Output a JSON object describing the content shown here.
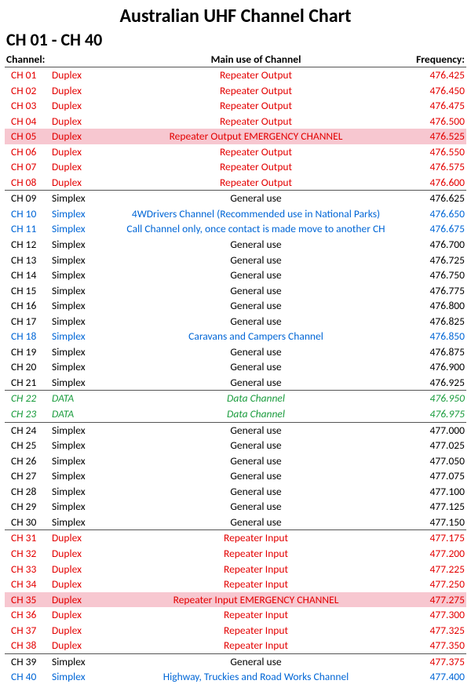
{
  "title": "Australian UHF Channel Chart",
  "subtitle": "CH 01 - CH 40",
  "headers": {
    "channel": "Channel:",
    "use": "Main use of Channel",
    "freq": "Frequency:"
  },
  "colors": {
    "red": "#e30000",
    "black": "#000000",
    "blue": "#0066d6",
    "green": "#1a9c3d",
    "highlight": "#f7c7d0"
  },
  "rows": [
    {
      "ch": "CH 01",
      "mode": "Duplex",
      "use": "Repeater Output",
      "freq": "476.425",
      "cls": "c-red"
    },
    {
      "ch": "CH 02",
      "mode": "Duplex",
      "use": "Repeater Output",
      "freq": "476.450",
      "cls": "c-red"
    },
    {
      "ch": "CH 03",
      "mode": "Duplex",
      "use": "Repeater Output",
      "freq": "476.475",
      "cls": "c-red"
    },
    {
      "ch": "CH 04",
      "mode": "Duplex",
      "use": "Repeater Output",
      "freq": "476.500",
      "cls": "c-red"
    },
    {
      "ch": "CH 05",
      "mode": "Duplex",
      "use": "Repeater Output    EMERGENCY CHANNEL",
      "freq": "476.525",
      "cls": "c-red",
      "hl": true
    },
    {
      "ch": "CH 06",
      "mode": "Duplex",
      "use": "Repeater Output",
      "freq": "476.550",
      "cls": "c-red"
    },
    {
      "ch": "CH 07",
      "mode": "Duplex",
      "use": "Repeater Output",
      "freq": "476.575",
      "cls": "c-red"
    },
    {
      "ch": "CH 08",
      "mode": "Duplex",
      "use": "Repeater Output",
      "freq": "476.600",
      "cls": "c-red"
    },
    {
      "ch": "CH 09",
      "mode": "Simplex",
      "use": "General use",
      "freq": "476.625",
      "cls": "c-black",
      "sep": true
    },
    {
      "ch": "CH 10",
      "mode": "Simplex",
      "use": "4WDrivers Channel (Recommended use in National Parks)",
      "freq": "476.650",
      "cls": "c-blue"
    },
    {
      "ch": "CH 11",
      "mode": "Simplex",
      "use": "Call Channel only, once contact is made move to another CH",
      "freq": "476.675",
      "cls": "c-blue"
    },
    {
      "ch": "CH 12",
      "mode": "Simplex",
      "use": "General use",
      "freq": "476.700",
      "cls": "c-black"
    },
    {
      "ch": "CH 13",
      "mode": "Simplex",
      "use": "General use",
      "freq": "476.725",
      "cls": "c-black"
    },
    {
      "ch": "CH 14",
      "mode": "Simplex",
      "use": "General use",
      "freq": "476.750",
      "cls": "c-black"
    },
    {
      "ch": "CH 15",
      "mode": "Simplex",
      "use": "General use",
      "freq": "476.775",
      "cls": "c-black"
    },
    {
      "ch": "CH 16",
      "mode": "Simplex",
      "use": "General use",
      "freq": "476.800",
      "cls": "c-black"
    },
    {
      "ch": "CH 17",
      "mode": "Simplex",
      "use": "General use",
      "freq": "476.825",
      "cls": "c-black"
    },
    {
      "ch": "CH 18",
      "mode": "Simplex",
      "use": "Caravans and Campers Channel",
      "freq": "476.850",
      "cls": "c-blue"
    },
    {
      "ch": "CH 19",
      "mode": "Simplex",
      "use": "General use",
      "freq": "476.875",
      "cls": "c-black"
    },
    {
      "ch": "CH 20",
      "mode": "Simplex",
      "use": "General use",
      "freq": "476.900",
      "cls": "c-black"
    },
    {
      "ch": "CH 21",
      "mode": "Simplex",
      "use": "General use",
      "freq": "476.925",
      "cls": "c-black"
    },
    {
      "ch": "CH 22",
      "mode": "DATA",
      "use": "Data Channel",
      "freq": "476.950",
      "cls": "c-green",
      "sep": true
    },
    {
      "ch": "CH 23",
      "mode": "DATA",
      "use": "Data Channel",
      "freq": "476.975",
      "cls": "c-green"
    },
    {
      "ch": "CH 24",
      "mode": "Simplex",
      "use": "General use",
      "freq": "477.000",
      "cls": "c-black",
      "sep": true
    },
    {
      "ch": "CH 25",
      "mode": "Simplex",
      "use": "General use",
      "freq": "477.025",
      "cls": "c-black"
    },
    {
      "ch": "CH 26",
      "mode": "Simplex",
      "use": "General use",
      "freq": "477.050",
      "cls": "c-black"
    },
    {
      "ch": "CH 27",
      "mode": "Simplex",
      "use": "General use",
      "freq": "477.075",
      "cls": "c-black"
    },
    {
      "ch": "CH 28",
      "mode": "Simplex",
      "use": "General use",
      "freq": "477.100",
      "cls": "c-black"
    },
    {
      "ch": "CH 29",
      "mode": "Simplex",
      "use": "General use",
      "freq": "477.125",
      "cls": "c-black"
    },
    {
      "ch": "CH 30",
      "mode": "Simplex",
      "use": "General use",
      "freq": "477.150",
      "cls": "c-black"
    },
    {
      "ch": "CH 31",
      "mode": "Duplex",
      "use": "Repeater Input",
      "freq": "477.175",
      "cls": "c-red",
      "sep": true
    },
    {
      "ch": "CH 32",
      "mode": "Duplex",
      "use": "Repeater Input",
      "freq": "477.200",
      "cls": "c-red"
    },
    {
      "ch": "CH 33",
      "mode": "Duplex",
      "use": "Repeater Input",
      "freq": "477.225",
      "cls": "c-red"
    },
    {
      "ch": "CH 34",
      "mode": "Duplex",
      "use": "Repeater Input",
      "freq": "477.250",
      "cls": "c-red"
    },
    {
      "ch": "CH 35",
      "mode": "Duplex",
      "use": "Repeater Input     EMERGENCY CHANNEL",
      "freq": "477.275",
      "cls": "c-red",
      "hl": true
    },
    {
      "ch": "CH 36",
      "mode": "Duplex",
      "use": "Repeater Input",
      "freq": "477.300",
      "cls": "c-red"
    },
    {
      "ch": "CH 37",
      "mode": "Duplex",
      "use": "Repeater Input",
      "freq": "477.325",
      "cls": "c-red"
    },
    {
      "ch": "CH 38",
      "mode": "Duplex",
      "use": "Repeater Input",
      "freq": "477.350",
      "cls": "c-red"
    },
    {
      "ch": "CH 39",
      "mode": "Simplex",
      "use": "General use",
      "freq": "477.375",
      "cls": "c-black",
      "sep": true,
      "freqcls": "freq-red"
    },
    {
      "ch": "CH 40",
      "mode": "Simplex",
      "use": "Highway, Truckies and Road Works Channel",
      "freq": "477.400",
      "cls": "c-blue"
    }
  ]
}
